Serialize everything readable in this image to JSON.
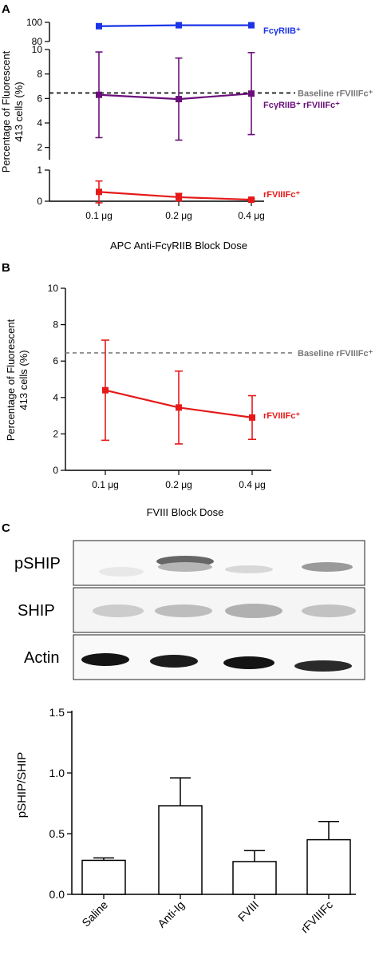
{
  "panels": {
    "a": {
      "letter": "A",
      "ylabel_line1": "Percentage of Fluorescent",
      "ylabel_line2": "413 cells (%)",
      "xlabel": "APC Anti-FcγRIIB Block Dose"
    },
    "b": {
      "letter": "B",
      "ylabel_line1": "Percentage of Fluorescent",
      "ylabel_line2": "413 cells (%)",
      "xlabel": "FVIII Block Dose"
    },
    "c": {
      "letter": "C",
      "blot_rows": [
        "pSHIP",
        "SHIP",
        "Actin"
      ],
      "ylabel": "pSHIP/SHIP"
    }
  },
  "chart_data": [
    {
      "id": "A",
      "type": "line",
      "categories": [
        "0.1 μg",
        "0.2 μg",
        "0.4 μg"
      ],
      "xlabel": "APC Anti-FcγRIIB Block Dose",
      "ylabel": "Percentage of Fluorescent 413 cells (%)",
      "broken_axis": true,
      "segments": [
        {
          "range": [
            80,
            100
          ],
          "ticks": [
            "80",
            "100"
          ]
        },
        {
          "range": [
            1,
            10
          ],
          "ticks": [
            "2",
            "4",
            "6",
            "8",
            "10"
          ]
        },
        {
          "range": [
            0,
            1
          ],
          "ticks": [
            "0",
            "1"
          ]
        }
      ],
      "series": [
        {
          "name": "FcγRIIB⁺",
          "color": "#1a33e6",
          "values": [
            96,
            97,
            97
          ],
          "errors": [
            0,
            0,
            0
          ]
        },
        {
          "name": "FcγRIIB⁺ rFVIIIFc⁺",
          "color": "#6a0f7a",
          "values": [
            6.3,
            5.95,
            6.4
          ],
          "errors": [
            3.5,
            3.35,
            3.35
          ]
        },
        {
          "name": "rFVIIIFc⁺",
          "color": "#e51919",
          "values": [
            0.3,
            0.13,
            0.05
          ],
          "errors": [
            0.35,
            0.12,
            0.03
          ]
        }
      ],
      "reference_lines": [
        {
          "name": "Baseline rFVIIIFc⁺",
          "value": 6.45,
          "color": "#000000"
        }
      ]
    },
    {
      "id": "B",
      "type": "line",
      "categories": [
        "0.1 μg",
        "0.2 μg",
        "0.4 μg"
      ],
      "xlabel": "FVIII Block Dose",
      "ylabel": "Percentage of Fluorescent 413 cells (%)",
      "ylim": [
        0,
        10
      ],
      "yticks": [
        "0",
        "2",
        "4",
        "6",
        "8",
        "10"
      ],
      "series": [
        {
          "name": "rFVIIIFc⁺",
          "color": "#e51919",
          "values": [
            4.4,
            3.45,
            2.9
          ],
          "errors": [
            2.75,
            2.0,
            1.2
          ]
        }
      ],
      "reference_lines": [
        {
          "name": "Baseline rFVIIIFc⁺",
          "value": 6.45,
          "color": "#808080"
        }
      ]
    },
    {
      "id": "C",
      "type": "bar",
      "categories": [
        "Saline",
        "Anti-Ig",
        "FVIII",
        "rFVIIIFc"
      ],
      "values": [
        0.28,
        0.73,
        0.27,
        0.45
      ],
      "errors": [
        0.02,
        0.23,
        0.09,
        0.15
      ],
      "ylabel": "pSHIP/SHIP",
      "ylim": [
        0,
        1.5
      ],
      "yticks": [
        "0.0",
        "0.5",
        "1.0",
        "1.5"
      ]
    }
  ]
}
